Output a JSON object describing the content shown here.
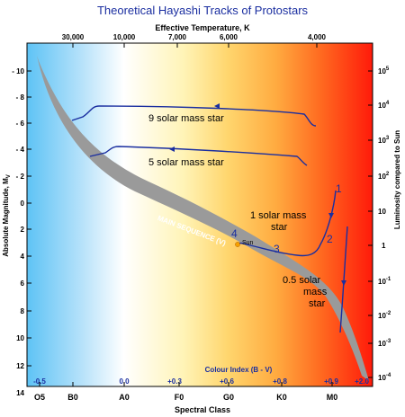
{
  "title": "Theoretical Hayashi Tracks of Protostars",
  "top_axis": {
    "label": "Effective Temperature, K",
    "ticks": [
      "30,000",
      "10,000",
      "7,000",
      "6,000",
      "4,000"
    ]
  },
  "left_axis": {
    "label_main": "Absolute Magnitude, M",
    "label_sub": "V",
    "ticks": [
      "- 10",
      "- 8",
      "- 6",
      "- 4",
      "- 2",
      "0",
      "2",
      "4",
      "6",
      "8",
      "10",
      "12",
      "14"
    ]
  },
  "right_axis": {
    "label": "Luminosity compared to Sun",
    "ticks": [
      {
        "base": "10",
        "exp": "5"
      },
      {
        "base": "10",
        "exp": "4"
      },
      {
        "base": "10",
        "exp": "3"
      },
      {
        "base": "10",
        "exp": "2"
      },
      {
        "base": "10",
        "exp": ""
      },
      {
        "base": "1",
        "exp": ""
      },
      {
        "base": "10",
        "exp": "-1"
      },
      {
        "base": "10",
        "exp": "-2"
      },
      {
        "base": "10",
        "exp": "-3"
      },
      {
        "base": "10",
        "exp": "-4"
      }
    ]
  },
  "colour_index": {
    "label": "Colour Index (B - V)",
    "ticks": [
      "-0.5",
      "0.0",
      "+0.3",
      "+0.6",
      "+0.8",
      "+0.9",
      "+2.0"
    ]
  },
  "spectral_class": {
    "label": "Spectral Class",
    "ticks": [
      "O5",
      "B0",
      "A0",
      "F0",
      "G0",
      "K0",
      "M0"
    ]
  },
  "main_sequence_label": "MAIN SEQUENCE (V)",
  "sun_label": "Sun",
  "tracks": [
    {
      "label": "9 solar mass star"
    },
    {
      "label": "5 solar mass star"
    },
    {
      "label_line1": "1 solar mass",
      "label_line2": "star"
    },
    {
      "label_line1": "0.5 solar",
      "label_line2": "mass",
      "label_line3": "star"
    }
  ],
  "stage_numbers": [
    "1",
    "2",
    "3",
    "4"
  ],
  "colors": {
    "title": "#1a2ea0",
    "track": "#1a2ea0",
    "main_sequence": "#9a9a9a",
    "sun": "#f5a000"
  }
}
